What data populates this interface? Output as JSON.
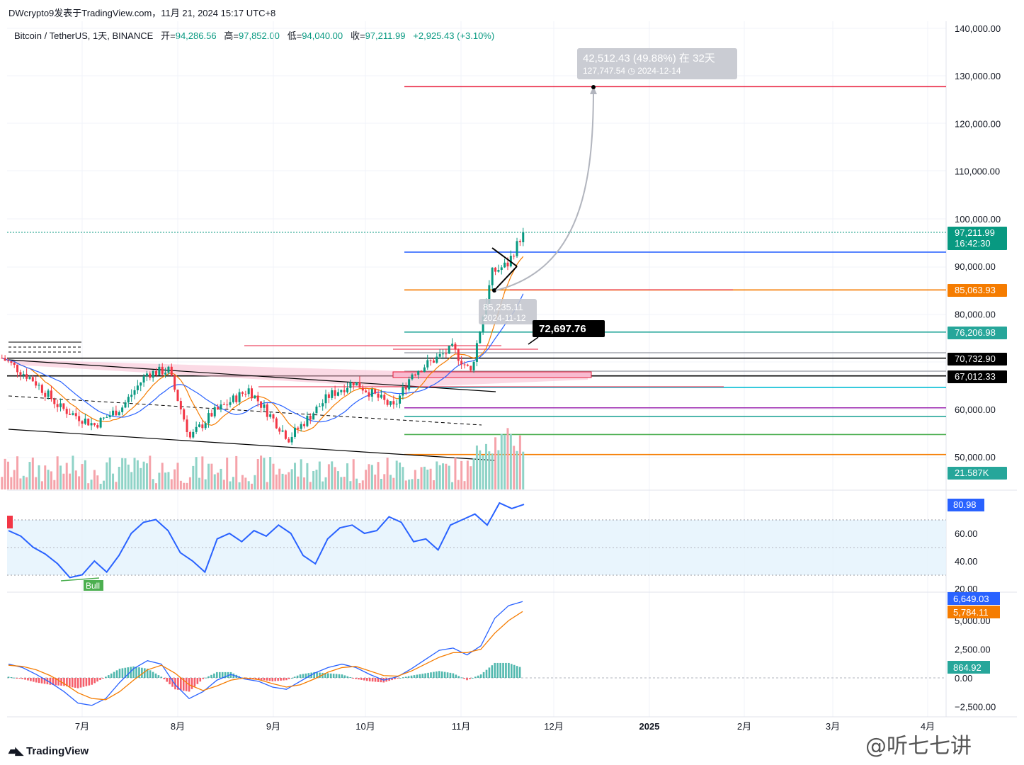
{
  "header": {
    "publisher": "DWcrypto9发表于TradingView.com，11月 21, 2024 15:17 UTC+8",
    "symbol": "Bitcoin / TetherUS, 1天, BINANCE",
    "open_label": "开=",
    "open_value": "94,286.56",
    "high_label": "高=",
    "high_value": "97,852.00",
    "low_label": "低=",
    "low_value": "94,040.00",
    "close_label": "收=",
    "close_value": "97,211.99",
    "change": "+2,925.43 (+3.10%)"
  },
  "footer": {
    "logo_text": "TradingView",
    "watermark": "@听七七讲"
  },
  "colors": {
    "up": "#089981",
    "down": "#f23645",
    "blue": "#2962ff",
    "orange": "#f57c00",
    "red_line": "#e91e3c"
  },
  "chart_data": [
    {
      "type": "line",
      "panel": "price",
      "title": "Bitcoin / TetherUS, 1天, BINANCE",
      "ylim": [
        40000,
        142000
      ],
      "price_ticks": [
        "140,000.00",
        "130,000.00",
        "120,000.00",
        "110,000.00",
        "100,000.00",
        "90,000.00",
        "80,000.00",
        "60,000.00",
        "50,000.00"
      ],
      "x_labels": [
        "7月",
        "8月",
        "9月",
        "10月",
        "11月",
        "12月",
        "2025",
        "2月",
        "3月",
        "4月"
      ],
      "approx_close_path": [
        {
          "x": "2024-06-05",
          "y": 70800
        },
        {
          "x": "2024-06-15",
          "y": 66200
        },
        {
          "x": "2024-06-24",
          "y": 60300
        },
        {
          "x": "2024-07-05",
          "y": 56700
        },
        {
          "x": "2024-07-14",
          "y": 60500
        },
        {
          "x": "2024-07-22",
          "y": 67500
        },
        {
          "x": "2024-07-29",
          "y": 68200
        },
        {
          "x": "2024-08-05",
          "y": 54000
        },
        {
          "x": "2024-08-12",
          "y": 59000
        },
        {
          "x": "2024-08-24",
          "y": 64200
        },
        {
          "x": "2024-09-06",
          "y": 53900
        },
        {
          "x": "2024-09-19",
          "y": 62800
        },
        {
          "x": "2024-09-27",
          "y": 65800
        },
        {
          "x": "2024-10-10",
          "y": 60300
        },
        {
          "x": "2024-10-16",
          "y": 67600
        },
        {
          "x": "2024-10-29",
          "y": 72700
        },
        {
          "x": "2024-11-04",
          "y": 67800
        },
        {
          "x": "2024-11-11",
          "y": 88700
        },
        {
          "x": "2024-11-16",
          "y": 90500
        },
        {
          "x": "2024-11-21",
          "y": 97211.99
        }
      ],
      "price_badges": [
        {
          "value": "97,211.99",
          "sub": "16:42:30",
          "color": "#089981"
        },
        {
          "value": "85,063.93",
          "color": "#f57c00"
        },
        {
          "value": "76,206.98",
          "color": "#26a69a"
        },
        {
          "value": "70,732.90",
          "color": "#000000"
        },
        {
          "value": "67,012.33",
          "color": "#000000"
        },
        {
          "value": "21.587K",
          "color": "#26a69a"
        }
      ],
      "horizontal_levels": [
        {
          "y": 127747.54,
          "color": "#e91e3c"
        },
        {
          "y": 93000,
          "color": "#2962ff"
        },
        {
          "y": 85063.93,
          "color": "#f57c00"
        },
        {
          "y": 76206.98,
          "color": "#26a69a"
        },
        {
          "y": 70732.9,
          "color": "#000000"
        },
        {
          "y": 67012.33,
          "color": "#000000"
        },
        {
          "y": 64600,
          "color": "#00bcd4"
        },
        {
          "y": 60300,
          "color": "#9c27b0"
        },
        {
          "y": 58500,
          "color": "#26a69a"
        },
        {
          "y": 54700,
          "color": "#4caf50"
        },
        {
          "y": 50500,
          "color": "#f57c00"
        }
      ],
      "annotations": [
        {
          "text": "42,512.43 (49.88%) 在 32天",
          "sub": "127,747.54 ◷ 2024-12-14"
        },
        {
          "text": "85,235.11",
          "sub": "2024-11-12"
        },
        {
          "text": "72,697.76"
        }
      ]
    },
    {
      "type": "line",
      "panel": "rsi",
      "ylim": [
        20,
        80
      ],
      "ticks": [
        "60.00",
        "40.00",
        "20.00"
      ],
      "series": [
        {
          "values": [
            62,
            58,
            50,
            45,
            38,
            28,
            30,
            40,
            32,
            44,
            60,
            68,
            70,
            62,
            46,
            40,
            32,
            56,
            60,
            54,
            62,
            58,
            66,
            60,
            44,
            38,
            56,
            64,
            66,
            60,
            62,
            72,
            68,
            54,
            56,
            48,
            66,
            70,
            74,
            66,
            82,
            78,
            80.98
          ]
        }
      ],
      "current_label": "80.98",
      "signal_label": "Bull"
    },
    {
      "type": "line",
      "panel": "macd",
      "ylim": [
        -3000,
        7500
      ],
      "ticks": [
        "5,000.00",
        "2,500.00",
        "0.00",
        "−2,500.00"
      ],
      "series": [
        {
          "values": [
            1200,
            900,
            300,
            -400,
            -1200,
            -2200,
            -2400,
            -1800,
            -400,
            800,
            1500,
            1200,
            -600,
            -1800,
            -1200,
            -200,
            300,
            -100,
            -300,
            -800,
            -1000,
            -300,
            400,
            900,
            1200,
            900,
            300,
            -200,
            100,
            800,
            1600,
            2400,
            2600,
            2000,
            2800,
            5200,
            6300,
            6649.03
          ]
        },
        {
          "values": [
            1100,
            1000,
            700,
            200,
            -500,
            -1300,
            -1800,
            -1900,
            -1200,
            -200,
            700,
            1100,
            400,
            -600,
            -1100,
            -700,
            -200,
            0,
            -150,
            -500,
            -800,
            -600,
            -100,
            500,
            900,
            1000,
            600,
            200,
            150,
            600,
            1200,
            1800,
            2200,
            2200,
            2500,
            3900,
            5000,
            5784.11
          ]
        }
      ],
      "current_labels": [
        "6,649.03",
        "5,784.11",
        "864.92"
      ]
    }
  ]
}
